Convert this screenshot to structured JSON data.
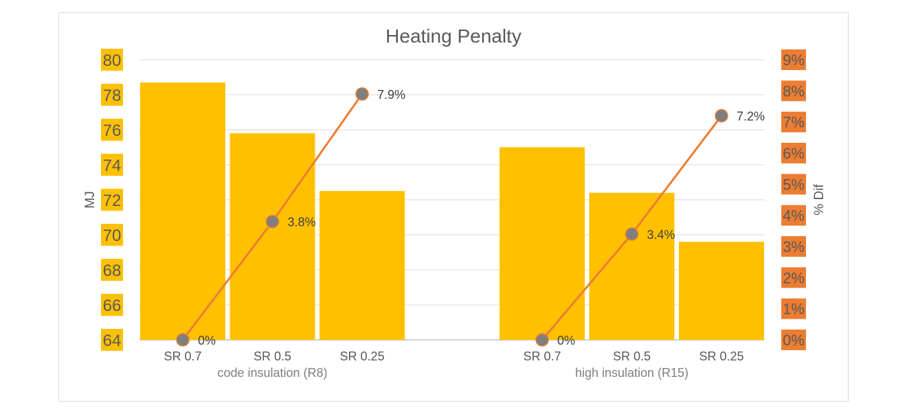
{
  "colors": {
    "bar": "#ffc000",
    "line": "#ed7d31",
    "marker": "#7f7f7f",
    "left_tick_bg": "#ffc000",
    "right_tick_bg": "#ed7d31",
    "grid": "#d9d9d9",
    "text": "#595959"
  },
  "chart_data": {
    "type": "bar",
    "title": "Heating Penalty",
    "ylabel": "MJ",
    "y2label": "% Dif",
    "ylim": [
      64,
      80
    ],
    "y2lim": [
      0,
      9
    ],
    "y_ticks": [
      "64",
      "66",
      "68",
      "70",
      "72",
      "74",
      "76",
      "78",
      "80"
    ],
    "y2_ticks": [
      "0%",
      "1%",
      "2%",
      "3%",
      "4%",
      "5%",
      "6%",
      "7%",
      "8%",
      "9%"
    ],
    "grid": true,
    "legend": "none",
    "groups": [
      {
        "label": "code insulation (R8)",
        "categories": [
          "SR 0.7",
          "SR 0.5",
          "SR 0.25"
        ],
        "bar_values": [
          78.7,
          75.8,
          72.5
        ],
        "pct_values": [
          0,
          3.8,
          7.9
        ],
        "pct_labels": [
          "0%",
          "3.8%",
          "7.9%"
        ]
      },
      {
        "label": "high insulation (R15)",
        "categories": [
          "SR 0.7",
          "SR 0.5",
          "SR 0.25"
        ],
        "bar_values": [
          75.0,
          72.4,
          69.6
        ],
        "pct_values": [
          0,
          3.4,
          7.2
        ],
        "pct_labels": [
          "0%",
          "3.4%",
          "7.2%"
        ]
      }
    ]
  }
}
